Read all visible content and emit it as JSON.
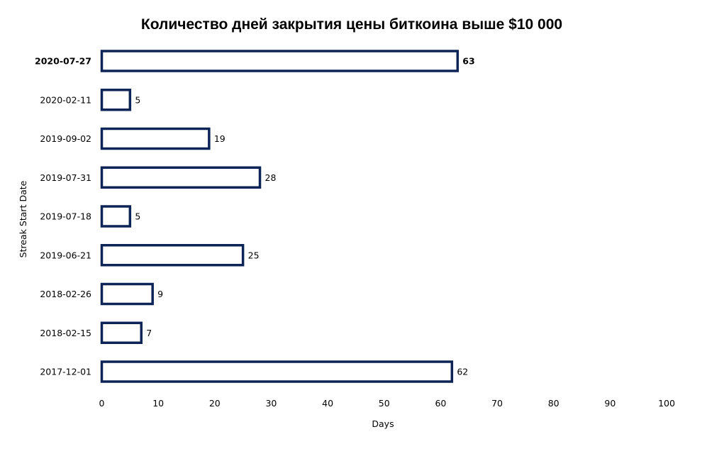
{
  "chart_data": {
    "type": "bar",
    "orientation": "horizontal",
    "title": "Количество дней закрытия цены биткоина выше $10 000",
    "xlabel": "Days",
    "ylabel": "Streak Start Date",
    "categories": [
      "2020-07-27",
      "2020-02-11",
      "2019-09-02",
      "2019-07-31",
      "2019-07-18",
      "2019-06-21",
      "2018-02-26",
      "2018-02-15",
      "2017-12-01"
    ],
    "values": [
      63,
      5,
      19,
      28,
      5,
      25,
      9,
      7,
      62
    ],
    "highlighted_category": "2020-07-27",
    "xlim": [
      0,
      100
    ],
    "xticks": [
      0,
      10,
      20,
      30,
      40,
      50,
      60,
      70,
      80,
      90,
      100
    ],
    "grid": false,
    "bar_fill": "#ffffff",
    "bar_edge_color": "#0d2457"
  }
}
